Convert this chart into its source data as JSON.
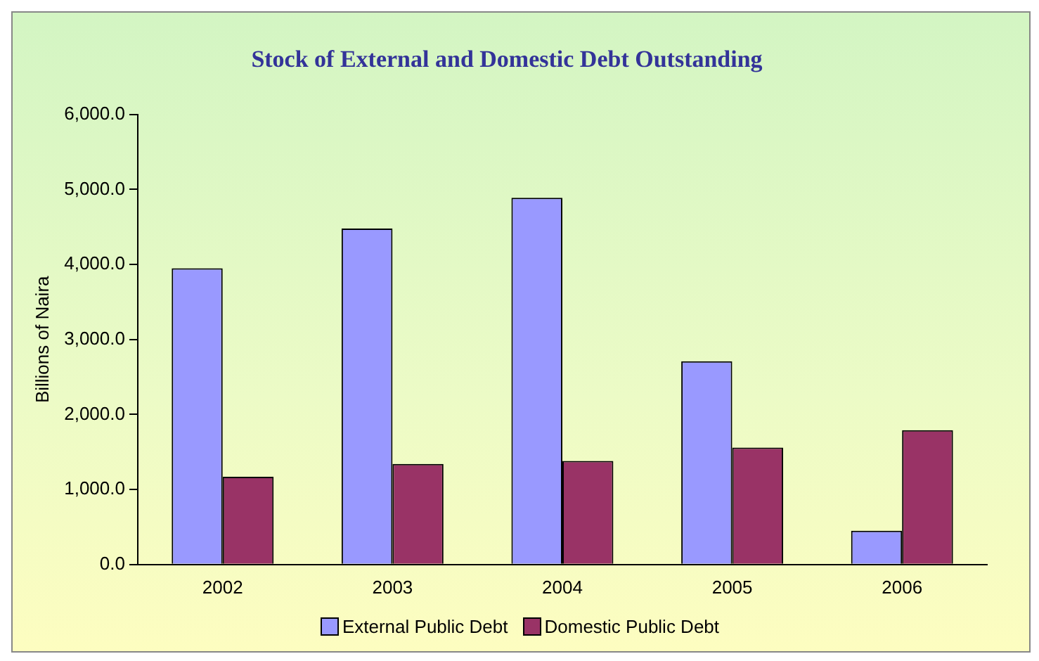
{
  "chart_data": {
    "type": "bar",
    "title": "Stock of External and Domestic Debt Outstanding",
    "ylabel": "Billions of Naira",
    "categories": [
      "2002",
      "2003",
      "2004",
      "2005",
      "2006"
    ],
    "series": [
      {
        "name": "External Public Debt",
        "color": "#9999ff",
        "values": [
          3950,
          4480,
          4890,
          2710,
          450
        ]
      },
      {
        "name": "Domestic Public Debt",
        "color": "#993366",
        "values": [
          1170,
          1340,
          1380,
          1560,
          1790
        ]
      }
    ],
    "ylim": [
      0,
      6000
    ],
    "yticks": [
      {
        "value": 0,
        "label": "0.0"
      },
      {
        "value": 1000,
        "label": "1,000.0"
      },
      {
        "value": 2000,
        "label": "2,000.0"
      },
      {
        "value": 3000,
        "label": "3,000.0"
      },
      {
        "value": 4000,
        "label": "4,000.0"
      },
      {
        "value": 5000,
        "label": "5,000.0"
      },
      {
        "value": 6000,
        "label": "6,000.0"
      }
    ],
    "grid": false,
    "legend": "bottom"
  }
}
